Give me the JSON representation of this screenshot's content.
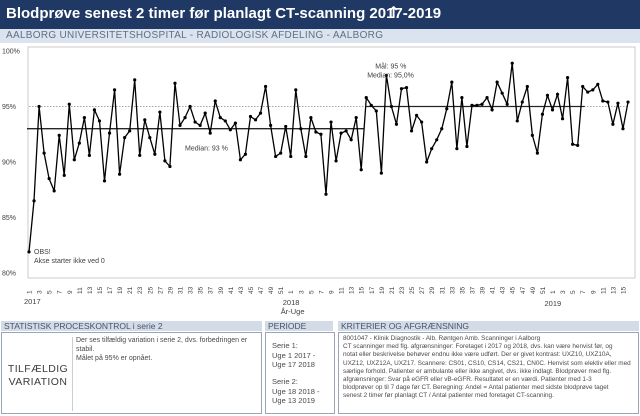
{
  "header": {
    "title": "Blodprøve senest 2 timer før planlagt CT-scanning 2017-2019",
    "arrow_glyph": "↑",
    "subtitle": "AALBORG UNIVERSITETSHOSPITAL - RADIOLOGISK AFDELING - AALBORG"
  },
  "chart_data": {
    "type": "line",
    "xlabel": "År-Uge",
    "ylim": [
      80,
      100
    ],
    "yticks": [
      "80%",
      "85%",
      "90%",
      "95%",
      "100%"
    ],
    "median_lines": [
      {
        "label": "Median: 93 %",
        "value": 93.0,
        "from_week": 1,
        "to_week": 67
      },
      {
        "label": "Median: 95,0%",
        "value": 95.0,
        "from_week": 68,
        "to_week": 111
      }
    ],
    "goal_line": {
      "label": "Mål: 95 %",
      "value": 95.0
    },
    "annotation": {
      "lines": [
        "OBS!",
        "Akse starter ikke ved 0"
      ]
    },
    "year_labels": [
      {
        "label": "2017",
        "week": 1
      },
      {
        "label": "2018",
        "week": 53
      },
      {
        "label": "2019",
        "week": 105
      }
    ],
    "series": [
      {
        "values": [
          81.9,
          86.5,
          95.0,
          90.8,
          88.5,
          87.4,
          92.4,
          88.8,
          95.2,
          90.2,
          91.7,
          94.0,
          90.6,
          94.7,
          93.7,
          88.3,
          92.6,
          96.5,
          88.9,
          92.2,
          92.8,
          97.4,
          90.6,
          93.8,
          92.2,
          90.7,
          94.5,
          90.1,
          89.6,
          97.1,
          93.3,
          94.0,
          95.0,
          93.6,
          93.3,
          94.4,
          92.6,
          95.5,
          94.0,
          93.7,
          92.9,
          93.5,
          90.2,
          90.7,
          94.1,
          93.8,
          94.4,
          96.8,
          93.3,
          90.5,
          90.8,
          93.2,
          90.5,
          96.5,
          93.0,
          90.5,
          94.0,
          92.7,
          92.5,
          87.1,
          93.6,
          90.1,
          92.6,
          92.8,
          92.0,
          94.0,
          89.3,
          95.8,
          95.1,
          94.6,
          89.0,
          97.8,
          95.0,
          93.4,
          96.6,
          96.7,
          92.8,
          94.2,
          93.6,
          90.0,
          91.2,
          92.0,
          93.0,
          94.8,
          97.2,
          91.2,
          95.8,
          91.4,
          95.1,
          95.1,
          95.2,
          95.8,
          94.7,
          97.2,
          96.2,
          95.2,
          98.9,
          93.7,
          95.4,
          96.8,
          92.4,
          90.8,
          94.3,
          96.0,
          94.7,
          96.1,
          93.9,
          97.6,
          91.6,
          91.5,
          96.8,
          96.3,
          96.5,
          97.0,
          95.5,
          95.4,
          93.4,
          95.3,
          93.0,
          95.4
        ]
      }
    ]
  },
  "spc": {
    "header": "STATISTISK PROCESKONTROL i serie 2",
    "result_line1": "TILFÆLDIG",
    "result_line2": "VARIATION",
    "desc_line1": "Der ses tilfældig variation i serie 2, dvs. forbedringen er",
    "desc_line2": "stabil.",
    "desc_line3": "Målet på 95% er opnået."
  },
  "period": {
    "header": "PERIODE",
    "serie1_title": "Serie 1:",
    "serie1_range_a": "Uge 1 2017 -",
    "serie1_range_b": "Uge 17 2018",
    "serie2_title": "Serie 2:",
    "serie2_range_a": "Uge 18 2018 -",
    "serie2_range_b": "Uge 13 2019"
  },
  "criteria": {
    "header": "KRITERIER OG AFGRÆNSNING",
    "line1": "8001047 - Klinik Diagnostik - Alb. Røntgen Amb. Scanninger i Aalborg",
    "line2": "CT scanninger med flg. afgrænsninger: Foretaget i 2017 og 2018, dvs. kan være henvist før, og",
    "line3": "notat eller beskrivelse behøver endnu ikke være udført. Der er givet kontrast: UXZ10, UXZ10A,",
    "line4": "UXZ12, UXZ12A, UXZ17. Scannere: CS01, CS10, CS14, CS21, CN0C. Henvist som elektiv eller med",
    "line5": "særlige forhold. Patienter er ambulante eller ikke angivet, dvs. ikke indlagt. Blodprøver med flg.",
    "line6": "afgrænsninger: Svar på eGFR eller vB-eGFR. Resultatet er en værdi. Patienter med 1-3",
    "line7": "blodprøver op til 7 dage før CT. Beregning: Andel = Antal patienter med sidste blodprøve taget",
    "line8": "senest 2 timer før planlagt CT / Antal patienter med foretaget CT-scanning."
  }
}
